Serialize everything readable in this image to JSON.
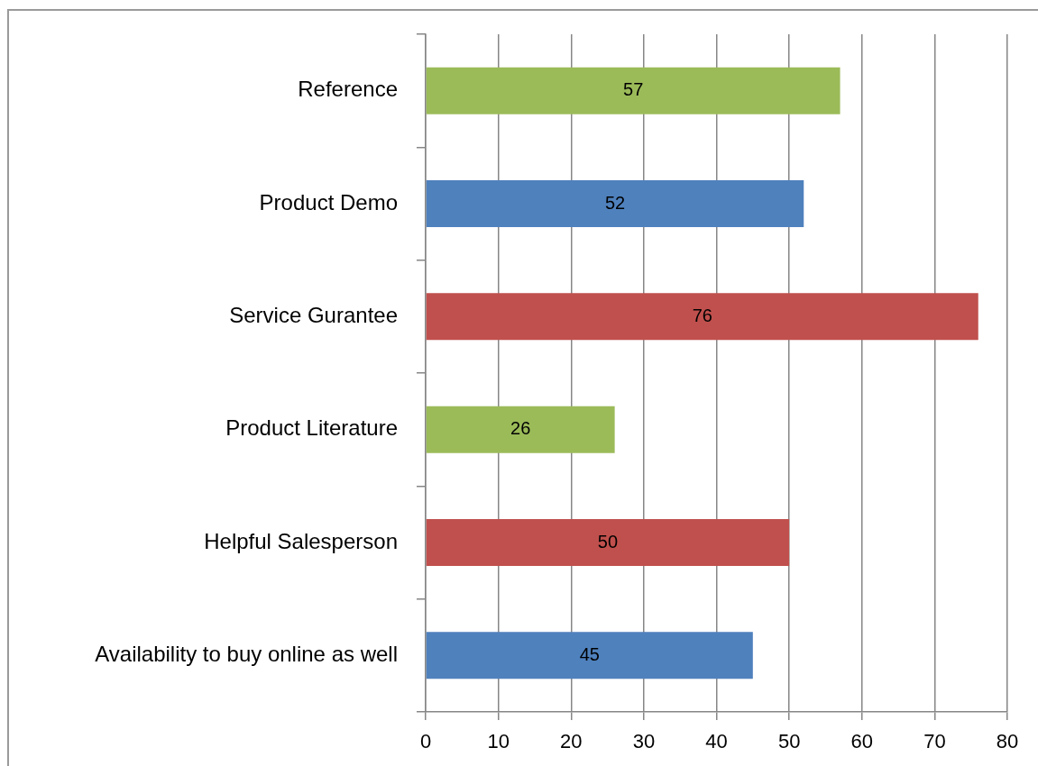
{
  "chart_data": {
    "type": "bar",
    "orientation": "horizontal",
    "categories": [
      "Reference",
      "Product Demo",
      "Service Gurantee",
      "Product Literature",
      "Helpful Salesperson",
      "Availability to buy online as well"
    ],
    "values": [
      57,
      52,
      76,
      26,
      50,
      45
    ],
    "colors": [
      "#9bbb59",
      "#4f81bd",
      "#c0504d",
      "#9bbb59",
      "#c0504d",
      "#4f81bd"
    ],
    "xlim": [
      0,
      80
    ],
    "xticks": [
      0,
      10,
      20,
      30,
      40,
      50,
      60,
      70,
      80
    ],
    "grid": "x",
    "data_labels": true
  }
}
